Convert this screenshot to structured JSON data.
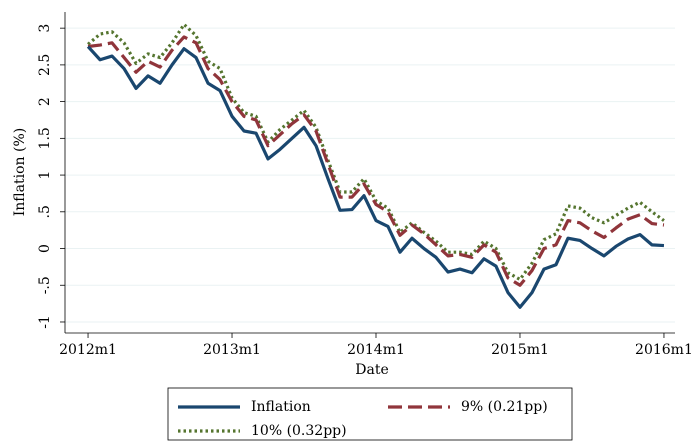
{
  "chart_data": {
    "type": "line",
    "x_label": "Date",
    "y_label": "Inflation (%)",
    "x": [
      624,
      625,
      626,
      627,
      628,
      629,
      630,
      631,
      632,
      633,
      634,
      635,
      636,
      637,
      638,
      639,
      640,
      641,
      642,
      643,
      644,
      645,
      646,
      647,
      648,
      649,
      650,
      651,
      652,
      653,
      654,
      655,
      656,
      657,
      658,
      659,
      660,
      661,
      662,
      663,
      664,
      665,
      666,
      667,
      668,
      669,
      670,
      671,
      672
    ],
    "xlim": [
      622.08,
      672.92
    ],
    "xticks": [
      {
        "value": 624,
        "label": "2012m1"
      },
      {
        "value": 636,
        "label": "2013m1"
      },
      {
        "value": 648,
        "label": "2014m1"
      },
      {
        "value": 660,
        "label": "2015m1"
      },
      {
        "value": 672,
        "label": "2016m1"
      }
    ],
    "ylim": [
      -1.15,
      3.22
    ],
    "yticks": [
      -1,
      {
        "value": -0.5,
        "label": "-.5"
      },
      0,
      {
        "value": 0.5,
        "label": ".5"
      },
      1,
      1.5,
      2,
      2.5,
      3
    ],
    "grid": true,
    "legend": "bottom",
    "series": [
      {
        "name": "Inflation",
        "color": "#1a476f",
        "style": "solid",
        "values": [
          2.75,
          2.57,
          2.62,
          2.45,
          2.18,
          2.35,
          2.25,
          2.5,
          2.72,
          2.6,
          2.25,
          2.15,
          1.8,
          1.6,
          1.57,
          1.22,
          1.35,
          1.5,
          1.65,
          1.4,
          0.95,
          0.52,
          0.53,
          0.72,
          0.38,
          0.3,
          -0.05,
          0.14,
          0.0,
          -0.12,
          -0.32,
          -0.28,
          -0.33,
          -0.14,
          -0.24,
          -0.6,
          -0.8,
          -0.6,
          -0.28,
          -0.22,
          0.14,
          0.11,
          0.0,
          -0.1,
          0.03,
          0.13,
          0.19,
          0.05,
          0.04
        ]
      },
      {
        "name": "9% (0.21pp)",
        "color": "#90353b",
        "style": "dash",
        "values": [
          2.75,
          2.77,
          2.8,
          2.6,
          2.4,
          2.55,
          2.47,
          2.7,
          2.88,
          2.8,
          2.45,
          2.3,
          2.0,
          1.8,
          1.75,
          1.4,
          1.55,
          1.7,
          1.82,
          1.6,
          1.15,
          0.7,
          0.7,
          0.88,
          0.6,
          0.5,
          0.18,
          0.32,
          0.2,
          0.05,
          -0.1,
          -0.08,
          -0.12,
          0.05,
          -0.05,
          -0.4,
          -0.5,
          -0.3,
          0.0,
          0.05,
          0.38,
          0.35,
          0.24,
          0.15,
          0.28,
          0.4,
          0.46,
          0.34,
          0.32
        ]
      },
      {
        "name": "10% (0.32pp)",
        "color": "#55752f",
        "style": "dot",
        "values": [
          2.78,
          2.92,
          2.95,
          2.8,
          2.52,
          2.65,
          2.6,
          2.8,
          3.05,
          2.9,
          2.55,
          2.45,
          2.05,
          1.85,
          1.8,
          1.45,
          1.62,
          1.75,
          1.88,
          1.65,
          1.2,
          0.77,
          0.77,
          0.95,
          0.65,
          0.55,
          0.22,
          0.35,
          0.22,
          0.1,
          -0.05,
          -0.05,
          -0.08,
          0.1,
          0.0,
          -0.33,
          -0.42,
          -0.2,
          0.12,
          0.2,
          0.58,
          0.55,
          0.42,
          0.35,
          0.45,
          0.55,
          0.63,
          0.5,
          0.38
        ]
      }
    ]
  }
}
